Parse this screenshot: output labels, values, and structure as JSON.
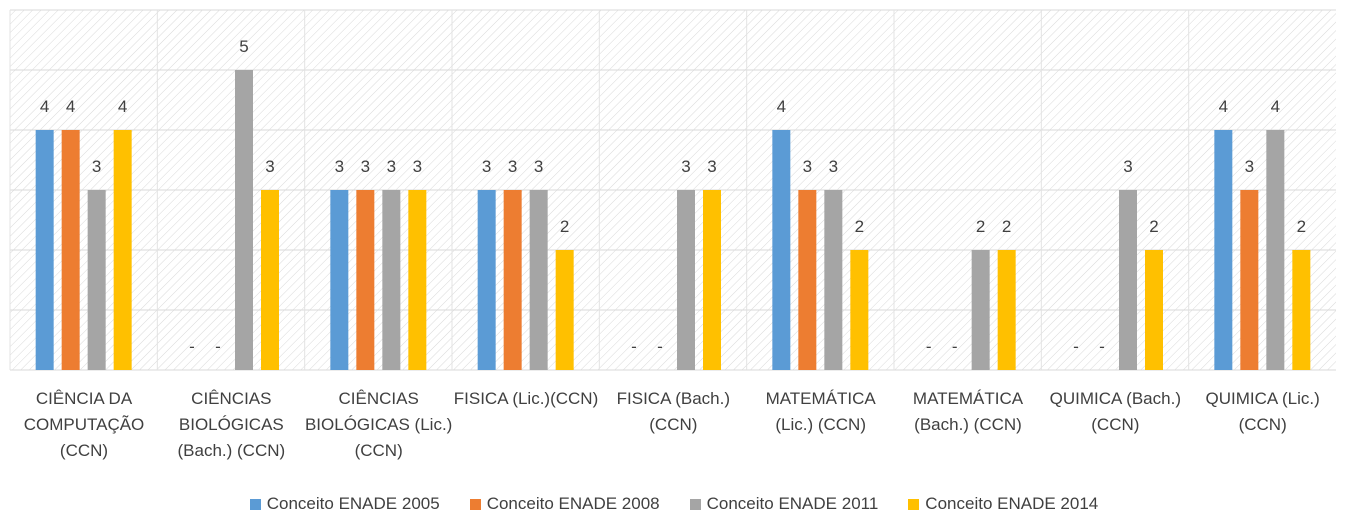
{
  "chart_data": {
    "type": "bar",
    "categories": [
      "CIÊNCIA DA COMPUTAÇÃO (CCN)",
      "CIÊNCIAS BIOLÓGICAS (Bach.) (CCN)",
      "CIÊNCIAS BIOLÓGICAS (Lic.) (CCN)",
      "FISICA (Lic.)(CCN)",
      "FISICA (Bach.) (CCN)",
      "MATEMÁTICA (Lic.) (CCN)",
      "MATEMÁTICA (Bach.) (CCN)",
      "QUIMICA (Bach.) (CCN)",
      "QUIMICA (Lic.) (CCN)"
    ],
    "series": [
      {
        "name": "Conceito ENADE 2005",
        "color": "#5b9bd5",
        "values": [
          4,
          null,
          3,
          3,
          null,
          4,
          null,
          null,
          4
        ],
        "value_labels": [
          "4",
          "-",
          "3",
          "3",
          "-",
          "4",
          "-",
          "-",
          "4"
        ]
      },
      {
        "name": "Conceito ENADE 2008",
        "color": "#ed7d31",
        "values": [
          4,
          null,
          3,
          3,
          null,
          3,
          null,
          null,
          3
        ],
        "value_labels": [
          "4",
          "-",
          "3",
          "3",
          "-",
          "3",
          "-",
          "-",
          "3"
        ]
      },
      {
        "name": "Conceito ENADE 2011",
        "color": "#a5a5a5",
        "values": [
          3,
          5,
          3,
          3,
          3,
          3,
          2,
          3,
          4
        ]
      },
      {
        "name": "Conceito ENADE 2014",
        "color": "#ffc000",
        "values": [
          4,
          3,
          3,
          2,
          3,
          2,
          2,
          2,
          2
        ]
      }
    ],
    "ylim": [
      0,
      6
    ],
    "yticks": [
      0,
      1,
      2,
      3,
      4,
      5,
      6
    ],
    "grid": true,
    "legend": "bottom"
  }
}
